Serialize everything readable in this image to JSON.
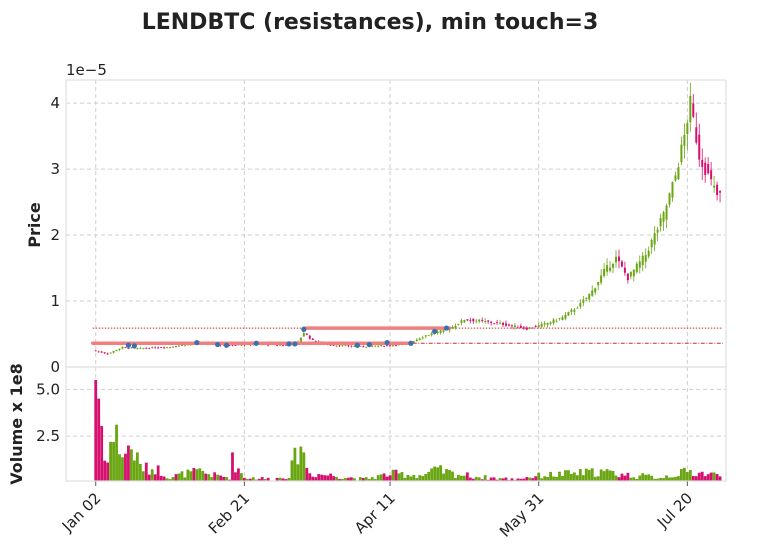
{
  "chart_data": {
    "type": "candlestick",
    "title": "LENDBTC (resistances), min touch=3",
    "price_panel": {
      "ylabel": "Price",
      "offset_label": "1e−5",
      "yticks": [
        0,
        1,
        2,
        3,
        4
      ],
      "ylim": [
        0,
        4.35
      ],
      "grid": true
    },
    "volume_panel": {
      "ylabel": "Volume x 1e8",
      "yticks": [
        "2.5",
        "5.0"
      ],
      "ytick_values": [
        2.5,
        5.0
      ],
      "ylim": [
        0.1,
        6.2
      ],
      "grid": true
    },
    "x_ticks": [
      {
        "label": "Jan 02",
        "day": 0
      },
      {
        "label": "Feb 21",
        "day": 50
      },
      {
        "label": "Apr 11",
        "day": 99
      },
      {
        "label": "May 31",
        "day": 149
      },
      {
        "label": "Jul 20",
        "day": 199
      }
    ],
    "xlim_days": [
      -10,
      212
    ],
    "resistance_levels": [
      {
        "price": 0.59,
        "style": "dotted",
        "color": "#c0392b"
      },
      {
        "price": 0.36,
        "style": "dash-dot",
        "color": "#c0392b"
      }
    ],
    "resistance_segments": [
      {
        "day_start": 70,
        "day_end": 119,
        "price": 0.59,
        "color": "#f08080"
      },
      {
        "day_start": -1,
        "day_end": 105,
        "price": 0.36,
        "color": "#f08080"
      }
    ],
    "touch_points": [
      {
        "day": 11,
        "price": 0.33
      },
      {
        "day": 13,
        "price": 0.32
      },
      {
        "day": 34,
        "price": 0.37
      },
      {
        "day": 41,
        "price": 0.34
      },
      {
        "day": 44,
        "price": 0.33
      },
      {
        "day": 54,
        "price": 0.36
      },
      {
        "day": 65,
        "price": 0.35
      },
      {
        "day": 67,
        "price": 0.35
      },
      {
        "day": 70,
        "price": 0.57
      },
      {
        "day": 88,
        "price": 0.33
      },
      {
        "day": 92,
        "price": 0.34
      },
      {
        "day": 98,
        "price": 0.37
      },
      {
        "day": 106,
        "price": 0.36
      },
      {
        "day": 114,
        "price": 0.54
      },
      {
        "day": 118,
        "price": 0.59
      }
    ],
    "price_anchors": [
      [
        0,
        0.25
      ],
      [
        5,
        0.2
      ],
      [
        10,
        0.3
      ],
      [
        15,
        0.28
      ],
      [
        25,
        0.3
      ],
      [
        35,
        0.36
      ],
      [
        45,
        0.33
      ],
      [
        55,
        0.35
      ],
      [
        65,
        0.33
      ],
      [
        69,
        0.38
      ],
      [
        71,
        0.52
      ],
      [
        74,
        0.4
      ],
      [
        80,
        0.33
      ],
      [
        90,
        0.31
      ],
      [
        100,
        0.33
      ],
      [
        106,
        0.36
      ],
      [
        112,
        0.48
      ],
      [
        120,
        0.58
      ],
      [
        125,
        0.72
      ],
      [
        130,
        0.7
      ],
      [
        138,
        0.65
      ],
      [
        146,
        0.58
      ],
      [
        152,
        0.65
      ],
      [
        158,
        0.75
      ],
      [
        164,
        0.95
      ],
      [
        168,
        1.15
      ],
      [
        172,
        1.45
      ],
      [
        176,
        1.65
      ],
      [
        180,
        1.35
      ],
      [
        186,
        1.7
      ],
      [
        192,
        2.3
      ],
      [
        196,
        2.9
      ],
      [
        199,
        3.5
      ],
      [
        201,
        4.0
      ],
      [
        204,
        3.2
      ],
      [
        207,
        2.9
      ],
      [
        210,
        2.6
      ]
    ],
    "volume_anchors": [
      [
        0,
        5.8
      ],
      [
        1,
        4.9
      ],
      [
        3,
        1.2
      ],
      [
        5,
        2.1
      ],
      [
        7,
        2.5
      ],
      [
        9,
        1.5
      ],
      [
        12,
        1.9
      ],
      [
        15,
        0.9
      ],
      [
        18,
        0.7
      ],
      [
        20,
        0.8
      ],
      [
        25,
        0.3
      ],
      [
        30,
        0.5
      ],
      [
        35,
        0.6
      ],
      [
        40,
        0.4
      ],
      [
        45,
        0.3
      ],
      [
        46,
        1.2
      ],
      [
        50,
        0.3
      ],
      [
        60,
        0.2
      ],
      [
        65,
        0.4
      ],
      [
        69,
        2.2
      ],
      [
        70,
        1.4
      ],
      [
        72,
        0.5
      ],
      [
        80,
        0.4
      ],
      [
        90,
        0.2
      ],
      [
        100,
        0.5
      ],
      [
        110,
        0.4
      ],
      [
        115,
        0.7
      ],
      [
        120,
        0.5
      ],
      [
        130,
        0.3
      ],
      [
        140,
        0.2
      ],
      [
        150,
        0.4
      ],
      [
        160,
        0.5
      ],
      [
        170,
        0.6
      ],
      [
        180,
        0.4
      ],
      [
        190,
        0.3
      ],
      [
        199,
        0.6
      ],
      [
        205,
        0.5
      ],
      [
        210,
        0.4
      ]
    ],
    "num_days": 211,
    "colors": {
      "up": "#6aa512",
      "down": "#d6106e",
      "touch_marker": "#3b6fb0",
      "grid": "#cfcfcf"
    }
  }
}
